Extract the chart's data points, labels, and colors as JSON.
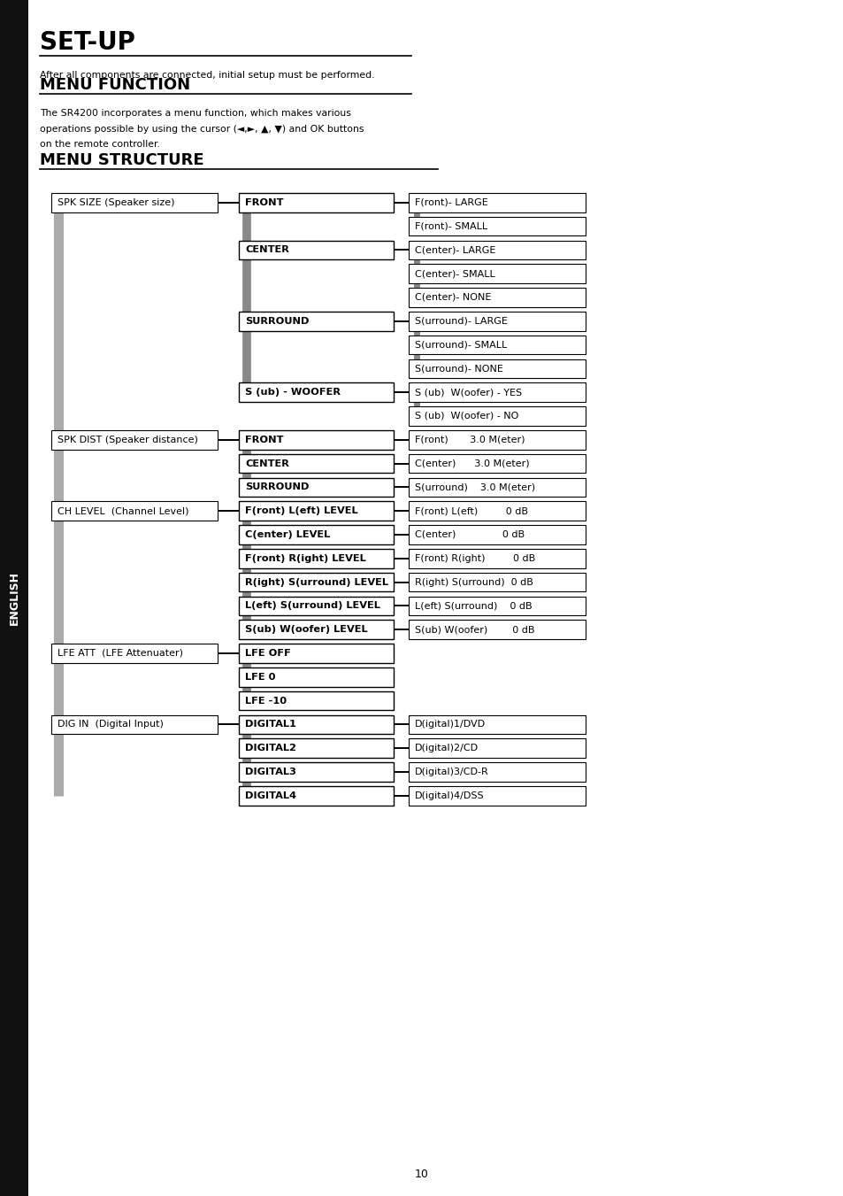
{
  "page_bg": "#ffffff",
  "title": "SET-UP",
  "title_sub": "After all components are connected, initial setup must be performed.",
  "section2_title": "MENU FUNCTION",
  "section2_body_line1": "The SR4200 incorporates a menu function, which makes various",
  "section2_body_line2": "operations possible by using the cursor (◄,►, ▲, ▼) and OK buttons",
  "section2_body_line3": "on the remote controller.",
  "section3_title": "MENU STRUCTURE",
  "sidebar_label": "ENGLISH",
  "page_number": "10",
  "sidebar_bg": "#111111",
  "sidebar_text": "#ffffff",
  "groups": [
    {
      "label": "SPK SIZE (Speaker size)",
      "col2_items": [
        {
          "text": "FRONT",
          "bold": true,
          "col3": [
            {
              "text": "F(ront)- LARGE"
            },
            {
              "text": "F(ront)- SMALL"
            }
          ]
        },
        {
          "text": "CENTER",
          "bold": true,
          "col3": [
            {
              "text": "C(enter)- LARGE"
            },
            {
              "text": "C(enter)- SMALL"
            },
            {
              "text": "C(enter)- NONE"
            }
          ]
        },
        {
          "text": "SURROUND",
          "bold": true,
          "col3": [
            {
              "text": "S(urround)- LARGE"
            },
            {
              "text": "S(urround)- SMALL"
            },
            {
              "text": "S(urround)- NONE"
            }
          ]
        },
        {
          "text": "S (ub) - WOOFER",
          "bold": true,
          "col3": [
            {
              "text": "S (ub)  W(oofer) - YES"
            },
            {
              "text": "S (ub)  W(oofer) - NO"
            }
          ]
        }
      ]
    },
    {
      "label": "SPK DIST (Speaker distance)",
      "col2_items": [
        {
          "text": "FRONT",
          "bold": true,
          "col3": [
            {
              "text": "F(ront)       3.0 M(eter)"
            }
          ]
        },
        {
          "text": "CENTER",
          "bold": true,
          "col3": [
            {
              "text": "C(enter)      3.0 M(eter)"
            }
          ]
        },
        {
          "text": "SURROUND",
          "bold": true,
          "col3": [
            {
              "text": "S(urround)    3.0 M(eter)"
            }
          ]
        }
      ]
    },
    {
      "label": "CH LEVEL  (Channel Level)",
      "col2_items": [
        {
          "text": "F(ront) L(eft) LEVEL",
          "bold": true,
          "col3": [
            {
              "text": "F(ront) L(eft)         0 dB"
            }
          ]
        },
        {
          "text": "C(enter) LEVEL",
          "bold": true,
          "col3": [
            {
              "text": "C(enter)               0 dB"
            }
          ]
        },
        {
          "text": "F(ront) R(ight) LEVEL",
          "bold": true,
          "col3": [
            {
              "text": "F(ront) R(ight)         0 dB"
            }
          ]
        },
        {
          "text": "R(ight) S(urround) LEVEL",
          "bold": true,
          "col3": [
            {
              "text": "R(ight) S(urround)  0 dB"
            }
          ]
        },
        {
          "text": "L(eft) S(urround) LEVEL",
          "bold": true,
          "col3": [
            {
              "text": "L(eft) S(urround)    0 dB"
            }
          ]
        },
        {
          "text": "S(ub) W(oofer) LEVEL",
          "bold": true,
          "col3": [
            {
              "text": "S(ub) W(oofer)        0 dB"
            }
          ]
        }
      ]
    },
    {
      "label": "LFE ATT  (LFE Attenuater)",
      "col2_items": [
        {
          "text": "LFE OFF",
          "bold": true,
          "col3": []
        },
        {
          "text": "LFE 0",
          "bold": true,
          "col3": []
        },
        {
          "text": "LFE -10",
          "bold": true,
          "col3": []
        }
      ]
    },
    {
      "label": "DIG IN  (Digital Input)",
      "col2_items": [
        {
          "text": "DIGITAL1",
          "bold": true,
          "col3": [
            {
              "text": "D(igital)1/DVD"
            }
          ]
        },
        {
          "text": "DIGITAL2",
          "bold": true,
          "col3": [
            {
              "text": "D(igital)2/CD"
            }
          ]
        },
        {
          "text": "DIGITAL3",
          "bold": true,
          "col3": [
            {
              "text": "D(igital)3/CD-R"
            }
          ]
        },
        {
          "text": "DIGITAL4",
          "bold": true,
          "col3": [
            {
              "text": "D(igital)4/DSS"
            }
          ]
        }
      ]
    }
  ]
}
